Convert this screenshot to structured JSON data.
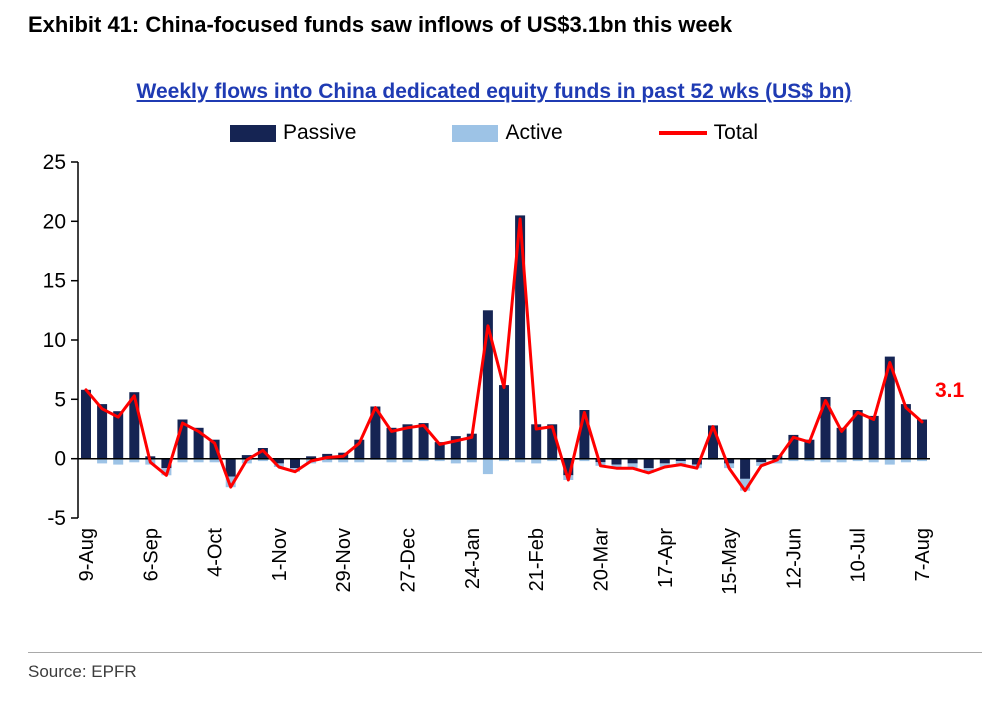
{
  "page": {
    "exhibit_title": "Exhibit 41: China-focused funds saw inflows of US$3.1bn this week",
    "source": "Source: EPFR"
  },
  "chart_data": {
    "type": "bar",
    "title": "Weekly flows into China dedicated equity funds in past 52 wks (US$ bn)",
    "title_color": "#1f3bb3",
    "xlabel": "",
    "ylabel": "",
    "ylim": [
      -5,
      25
    ],
    "yticks": [
      -5,
      0,
      5,
      10,
      15,
      20,
      25
    ],
    "grid": false,
    "legend_position": "top",
    "x_tick_interval": 4,
    "x_tick_labels": [
      "9-Aug",
      "6-Sep",
      "4-Oct",
      "1-Nov",
      "29-Nov",
      "27-Dec",
      "24-Jan",
      "21-Feb",
      "20-Mar",
      "17-Apr",
      "15-May",
      "12-Jun",
      "10-Jul",
      "7-Aug"
    ],
    "series": [
      {
        "name": "Passive",
        "type": "bar",
        "color": "#152453",
        "values": [
          5.8,
          4.6,
          4.0,
          5.6,
          0.2,
          -0.8,
          3.3,
          2.6,
          1.6,
          -1.5,
          0.3,
          0.9,
          -0.4,
          -0.8,
          0.2,
          0.4,
          0.5,
          1.6,
          4.4,
          2.6,
          2.9,
          3.0,
          1.4,
          1.9,
          2.1,
          12.5,
          6.2,
          20.5,
          2.9,
          2.9,
          -1.4,
          4.1,
          -0.3,
          -0.5,
          -0.4,
          -0.8,
          -0.4,
          -0.2,
          -0.5,
          2.8,
          -0.4,
          -1.7,
          -0.3,
          0.3,
          2.0,
          1.6,
          5.2,
          2.6,
          4.1,
          3.6,
          8.6,
          4.6,
          3.3
        ]
      },
      {
        "name": "Active",
        "type": "bar",
        "color": "#9dc3e6",
        "values": [
          0.0,
          -0.4,
          -0.5,
          -0.3,
          -0.5,
          -0.6,
          -0.3,
          -0.3,
          -0.3,
          -0.9,
          -0.4,
          -0.2,
          -0.3,
          -0.3,
          -0.4,
          -0.3,
          -0.3,
          -0.3,
          -0.1,
          -0.3,
          -0.3,
          -0.2,
          -0.2,
          -0.4,
          -0.3,
          -1.3,
          -0.2,
          -0.3,
          -0.4,
          -0.2,
          -0.4,
          -0.2,
          -0.3,
          -0.3,
          -0.4,
          -0.4,
          -0.3,
          -0.3,
          -0.3,
          -0.1,
          -0.4,
          -1.0,
          -0.3,
          -0.4,
          -0.2,
          -0.2,
          -0.3,
          -0.3,
          -0.2,
          -0.3,
          -0.5,
          -0.3,
          -0.2
        ]
      },
      {
        "name": "Total",
        "type": "line",
        "color": "#ff0000",
        "values": [
          5.8,
          4.2,
          3.5,
          5.3,
          -0.3,
          -1.4,
          3.0,
          2.3,
          1.3,
          -2.4,
          -0.1,
          0.7,
          -0.7,
          -1.1,
          -0.2,
          0.1,
          0.2,
          1.3,
          4.3,
          2.3,
          2.6,
          2.8,
          1.2,
          1.5,
          1.8,
          11.2,
          6.0,
          20.2,
          2.5,
          2.7,
          -1.8,
          3.9,
          -0.6,
          -0.8,
          -0.8,
          -1.2,
          -0.7,
          -0.5,
          -0.8,
          2.7,
          -0.8,
          -2.7,
          -0.6,
          -0.1,
          1.8,
          1.4,
          4.9,
          2.3,
          3.9,
          3.3,
          8.1,
          4.3,
          3.1
        ]
      }
    ],
    "annotation": {
      "text": "3.1",
      "value": 3.1,
      "color": "#ff0000"
    }
  }
}
